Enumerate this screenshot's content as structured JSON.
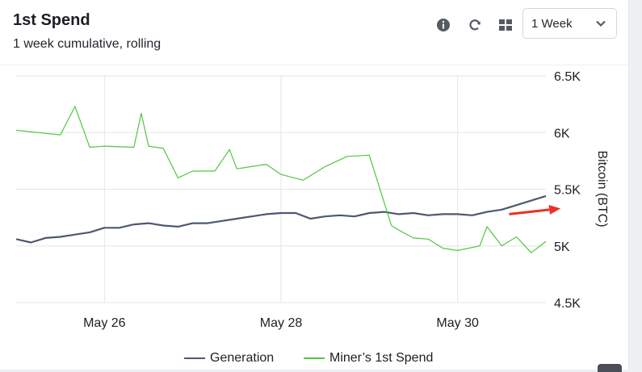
{
  "header": {
    "title": "1st Spend",
    "subtitle": "1 week cumulative, rolling",
    "range_select": {
      "value": "1 Week"
    },
    "icons": [
      "info-icon",
      "refresh-icon",
      "grid-icon",
      "chevron-down-icon"
    ]
  },
  "colors": {
    "generation": "#4d5870",
    "first_spend": "#4fc73e",
    "annotation_arrow": "#ef2f22",
    "grid": "#e6e6e6"
  },
  "chart_data": {
    "type": "line",
    "ylabel": "Bitcoin (BTC)",
    "y_axis_side": "right",
    "ylim": [
      4500,
      6500
    ],
    "yticks": [
      4500,
      5000,
      5500,
      6000,
      6500
    ],
    "ytick_labels": [
      "4.5K",
      "5K",
      "5.5K",
      "6K",
      "6.5K"
    ],
    "x_unit": "days",
    "xlim": [
      "2024-05-25",
      "2024-05-31"
    ],
    "xticks": [
      "2024-05-26",
      "2024-05-28",
      "2024-05-30"
    ],
    "xtick_labels": [
      "May 26",
      "May 28",
      "May 30"
    ],
    "grid": true,
    "legend_position": "bottom",
    "series": [
      {
        "name": "Generation",
        "color": "#4d5870",
        "x": [
          "2024-05-25 00:00",
          "2024-05-25 04:00",
          "2024-05-25 08:00",
          "2024-05-25 12:00",
          "2024-05-25 16:00",
          "2024-05-25 20:00",
          "2024-05-26 00:00",
          "2024-05-26 04:00",
          "2024-05-26 08:00",
          "2024-05-26 12:00",
          "2024-05-26 16:00",
          "2024-05-26 20:00",
          "2024-05-27 00:00",
          "2024-05-27 04:00",
          "2024-05-27 08:00",
          "2024-05-27 12:00",
          "2024-05-27 16:00",
          "2024-05-27 20:00",
          "2024-05-28 00:00",
          "2024-05-28 04:00",
          "2024-05-28 08:00",
          "2024-05-28 12:00",
          "2024-05-28 16:00",
          "2024-05-28 20:00",
          "2024-05-29 00:00",
          "2024-05-29 04:00",
          "2024-05-29 08:00",
          "2024-05-29 12:00",
          "2024-05-29 16:00",
          "2024-05-29 20:00",
          "2024-05-30 00:00",
          "2024-05-30 04:00",
          "2024-05-30 08:00",
          "2024-05-30 12:00",
          "2024-05-30 16:00",
          "2024-05-30 20:00",
          "2024-05-31 00:00"
        ],
        "values": [
          5060,
          5030,
          5070,
          5080,
          5100,
          5120,
          5160,
          5160,
          5190,
          5200,
          5180,
          5170,
          5200,
          5200,
          5220,
          5240,
          5260,
          5280,
          5290,
          5290,
          5240,
          5260,
          5270,
          5260,
          5290,
          5300,
          5280,
          5290,
          5270,
          5280,
          5280,
          5270,
          5300,
          5320,
          5360,
          5400,
          5440
        ]
      },
      {
        "name": "Miner’s 1st Spend",
        "color": "#4fc73e",
        "x": [
          "2024-05-25 00:00",
          "2024-05-25 06:00",
          "2024-05-25 12:00",
          "2024-05-25 16:00",
          "2024-05-25 18:00",
          "2024-05-25 20:00",
          "2024-05-26 00:00",
          "2024-05-26 08:00",
          "2024-05-26 10:00",
          "2024-05-26 12:00",
          "2024-05-26 16:00",
          "2024-05-26 20:00",
          "2024-05-27 00:00",
          "2024-05-27 06:00",
          "2024-05-27 10:00",
          "2024-05-27 12:00",
          "2024-05-27 16:00",
          "2024-05-27 20:00",
          "2024-05-28 00:00",
          "2024-05-28 06:00",
          "2024-05-28 12:00",
          "2024-05-28 18:00",
          "2024-05-29 00:00",
          "2024-05-29 06:00",
          "2024-05-29 08:00",
          "2024-05-29 12:00",
          "2024-05-29 16:00",
          "2024-05-29 20:00",
          "2024-05-30 00:00",
          "2024-05-30 06:00",
          "2024-05-30 08:00",
          "2024-05-30 12:00",
          "2024-05-30 16:00",
          "2024-05-30 20:00",
          "2024-05-31 00:00"
        ],
        "values": [
          6020,
          6000,
          5980,
          6230,
          6050,
          5870,
          5880,
          5870,
          6170,
          5880,
          5860,
          5600,
          5660,
          5660,
          5850,
          5680,
          5700,
          5720,
          5630,
          5580,
          5700,
          5790,
          5800,
          5180,
          5140,
          5070,
          5060,
          4980,
          4960,
          5000,
          5170,
          5000,
          5080,
          4940,
          5040
        ]
      }
    ],
    "annotations": [
      {
        "type": "arrow",
        "color": "#ef2f22",
        "from": [
          "2024-05-30 14:00",
          5280
        ],
        "to": [
          "2024-05-31 04:00",
          5330
        ]
      }
    ]
  },
  "legend": {
    "items": [
      "Generation",
      "Miner’s 1st Spend"
    ]
  }
}
